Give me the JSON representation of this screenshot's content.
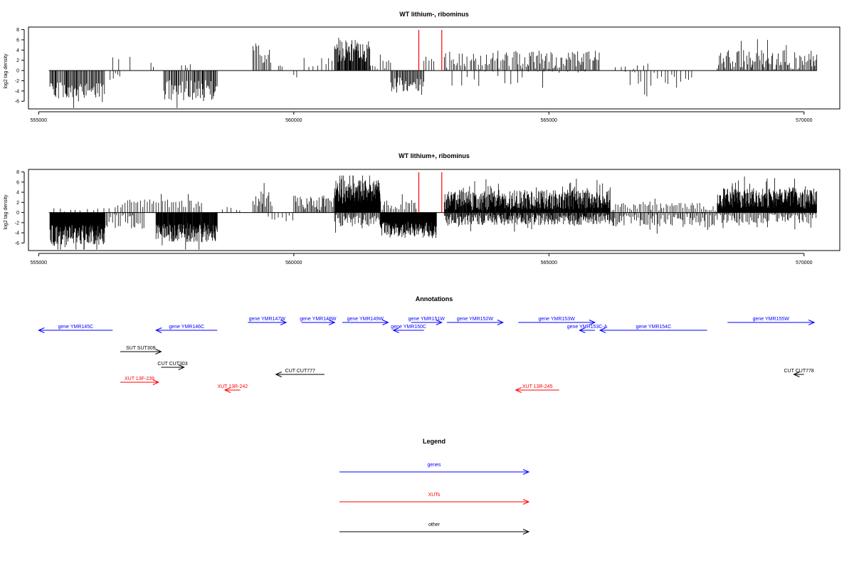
{
  "colors": {
    "gene": "#0000ff",
    "xut": "#ff0000",
    "other": "#000000",
    "marker": "#ff0000",
    "bars": "#000000"
  },
  "chart_data": [
    {
      "type": "bar",
      "title": "WT lithium-, ribominus",
      "ylabel": "log2 tag density",
      "xlim": [
        554800,
        570700
      ],
      "ylim": [
        -7.5,
        8.5
      ],
      "xticks": [
        555000,
        560000,
        565000,
        570000
      ],
      "xtick_labels": [
        "555000",
        "560000",
        "565000",
        "570000"
      ],
      "yticks": [
        -6,
        -4,
        -2,
        0,
        2,
        4,
        6,
        8
      ],
      "ytick_labels": [
        "-6",
        "-4",
        "-2",
        "0",
        "2",
        "4",
        "6",
        "8"
      ],
      "baseline_range": [
        555200,
        570250
      ],
      "red_markers_x": [
        562450,
        562900
      ],
      "regions": [
        {
          "from": 555220,
          "to": 556300,
          "sign": -1,
          "amp": 4.2,
          "var": 2.0,
          "step": 18
        },
        {
          "from": 556400,
          "to": 556600,
          "sign": -1,
          "amp": 1.5,
          "var": 1.0,
          "step": 45
        },
        {
          "from": 556450,
          "to": 556950,
          "sign": 1,
          "amp": 2.4,
          "var": 0.6,
          "step": 160
        },
        {
          "from": 557200,
          "to": 557300,
          "sign": 1,
          "amp": 1.2,
          "var": 0.5,
          "step": 80
        },
        {
          "from": 557450,
          "to": 558500,
          "sign": -1,
          "amp": 3.9,
          "var": 2.1,
          "step": 18
        },
        {
          "from": 557800,
          "to": 558000,
          "sign": 1,
          "amp": 0.8,
          "var": 0.4,
          "step": 60
        },
        {
          "from": 559200,
          "to": 559550,
          "sign": 1,
          "amp": 3.5,
          "var": 2.0,
          "step": 25
        },
        {
          "from": 559700,
          "to": 559800,
          "sign": 1,
          "amp": 1.0,
          "var": 0.5,
          "step": 50
        },
        {
          "from": 560000,
          "to": 560100,
          "sign": -1,
          "amp": 1.4,
          "var": 0.6,
          "step": 50
        },
        {
          "from": 560200,
          "to": 560800,
          "sign": 1,
          "amp": 1.6,
          "var": 1.6,
          "step": 70
        },
        {
          "from": 560800,
          "to": 561500,
          "sign": 1,
          "amp": 3.8,
          "var": 2.2,
          "step": 12
        },
        {
          "from": 561500,
          "to": 561900,
          "sign": 1,
          "amp": 1.2,
          "var": 1.0,
          "step": 45
        },
        {
          "from": 561900,
          "to": 562550,
          "sign": -1,
          "amp": 2.8,
          "var": 1.5,
          "step": 18
        },
        {
          "from": 562550,
          "to": 562800,
          "sign": 1,
          "amp": 1.8,
          "var": 1.2,
          "step": 45
        },
        {
          "from": 562950,
          "to": 564600,
          "sign": 1,
          "amp": 1.9,
          "var": 1.9,
          "step": 28
        },
        {
          "from": 563100,
          "to": 564900,
          "sign": -1,
          "amp": 1.0,
          "var": 2.0,
          "step": 140
        },
        {
          "from": 564600,
          "to": 566000,
          "sign": 1,
          "amp": 2.0,
          "var": 1.9,
          "step": 24
        },
        {
          "from": 564900,
          "to": 565800,
          "sign": -1,
          "amp": 1.0,
          "var": 1.5,
          "step": 150
        },
        {
          "from": 566500,
          "to": 567800,
          "sign": -1,
          "amp": 1.6,
          "var": 1.6,
          "step": 70
        },
        {
          "from": 566300,
          "to": 567000,
          "sign": 1,
          "amp": 0.6,
          "var": 0.4,
          "step": 120
        },
        {
          "from": 568300,
          "to": 570250,
          "sign": 1,
          "amp": 2.1,
          "var": 1.9,
          "step": 22
        }
      ]
    },
    {
      "type": "bar",
      "title": "WT lithium+, ribominus",
      "ylabel": "log2 tag density",
      "xlim": [
        554800,
        570700
      ],
      "ylim": [
        -7.5,
        8.5
      ],
      "xticks": [
        555000,
        560000,
        565000,
        570000
      ],
      "xtick_labels": [
        "555000",
        "560000",
        "565000",
        "570000"
      ],
      "yticks": [
        -6,
        -4,
        -2,
        0,
        2,
        4,
        6,
        8
      ],
      "ytick_labels": [
        "-6",
        "-4",
        "-2",
        "0",
        "2",
        "4",
        "6",
        "8"
      ],
      "baseline_range": [
        555200,
        570250
      ],
      "red_markers_x": [
        562450,
        562900
      ],
      "regions": [
        {
          "from": 555220,
          "to": 556300,
          "sign": -1,
          "amp": 4.4,
          "var": 2.0,
          "step": 8
        },
        {
          "from": 555300,
          "to": 556400,
          "sign": 1,
          "amp": 0.5,
          "var": 0.4,
          "step": 120
        },
        {
          "from": 556300,
          "to": 557100,
          "sign": -1,
          "amp": 1.8,
          "var": 1.6,
          "step": 30
        },
        {
          "from": 556500,
          "to": 557300,
          "sign": 1,
          "amp": 1.8,
          "var": 0.9,
          "step": 45
        },
        {
          "from": 557300,
          "to": 558500,
          "sign": -1,
          "amp": 4.0,
          "var": 2.0,
          "step": 9
        },
        {
          "from": 557300,
          "to": 558200,
          "sign": 1,
          "amp": 1.8,
          "var": 0.9,
          "step": 40
        },
        {
          "from": 558600,
          "to": 559000,
          "sign": 1,
          "amp": 0.6,
          "var": 0.5,
          "step": 90
        },
        {
          "from": 559200,
          "to": 559600,
          "sign": 1,
          "amp": 2.6,
          "var": 1.6,
          "step": 25
        },
        {
          "from": 559500,
          "to": 560000,
          "sign": -1,
          "amp": 0.9,
          "var": 0.7,
          "step": 60
        },
        {
          "from": 560000,
          "to": 560800,
          "sign": 1,
          "amp": 1.9,
          "var": 1.5,
          "step": 22
        },
        {
          "from": 560800,
          "to": 561700,
          "sign": 1,
          "amp": 4.0,
          "var": 2.4,
          "step": 6
        },
        {
          "from": 560800,
          "to": 561700,
          "sign": -1,
          "amp": 1.6,
          "var": 1.2,
          "step": 20
        },
        {
          "from": 561700,
          "to": 562800,
          "sign": -1,
          "amp": 3.4,
          "var": 1.6,
          "step": 8
        },
        {
          "from": 561700,
          "to": 562400,
          "sign": 1,
          "amp": 1.5,
          "var": 1.0,
          "step": 30
        },
        {
          "from": 562950,
          "to": 566200,
          "sign": 1,
          "amp": 2.5,
          "var": 2.0,
          "step": 9
        },
        {
          "from": 562950,
          "to": 566200,
          "sign": -1,
          "amp": 1.4,
          "var": 1.1,
          "step": 14
        },
        {
          "from": 566200,
          "to": 568300,
          "sign": -1,
          "amp": 1.6,
          "var": 1.4,
          "step": 25
        },
        {
          "from": 566200,
          "to": 568300,
          "sign": 1,
          "amp": 1.1,
          "var": 0.8,
          "step": 35
        },
        {
          "from": 568300,
          "to": 570250,
          "sign": 1,
          "amp": 2.8,
          "var": 2.0,
          "step": 7
        },
        {
          "from": 568300,
          "to": 570250,
          "sign": -1,
          "amp": 1.2,
          "var": 1.0,
          "step": 25
        }
      ]
    }
  ],
  "annotations": {
    "title": "Annotations",
    "rows": [
      {
        "label": "gene YMR145C",
        "start": 556450,
        "end": 555000,
        "row": 1,
        "cls": "gene"
      },
      {
        "label": "gene YMR146C",
        "start": 558500,
        "end": 557300,
        "row": 1,
        "cls": "gene"
      },
      {
        "label": "gene YMR147W",
        "start": 559100,
        "end": 559850,
        "row": 0,
        "cls": "gene"
      },
      {
        "label": "gene YMR148W",
        "start": 560150,
        "end": 560800,
        "row": 0,
        "cls": "gene"
      },
      {
        "label": "gene YMR149W",
        "start": 560950,
        "end": 561850,
        "row": 0,
        "cls": "gene"
      },
      {
        "label": "gene YMR150C",
        "start": 562550,
        "end": 561950,
        "row": 1,
        "cls": "gene"
      },
      {
        "label": "gene YMR151W",
        "start": 562300,
        "end": 562900,
        "row": 0,
        "cls": "gene"
      },
      {
        "label": "gene YMR152W",
        "start": 563000,
        "end": 564100,
        "row": 0,
        "cls": "gene"
      },
      {
        "label": "gene YMR153W",
        "start": 564400,
        "end": 565900,
        "row": 0,
        "cls": "gene"
      },
      {
        "label": "gene YMR153C-A",
        "start": 565900,
        "end": 565600,
        "row": 1,
        "cls": "gene"
      },
      {
        "label": "gene YMR154C",
        "start": 568100,
        "end": 566000,
        "row": 1,
        "cls": "gene"
      },
      {
        "label": "gene YMR155W",
        "start": 568500,
        "end": 570200,
        "row": 0,
        "cls": "gene"
      },
      {
        "label": "SUT SUT309",
        "start": 556600,
        "end": 557400,
        "row": 2,
        "cls": "other"
      },
      {
        "label": "CUT CUT303",
        "start": 557400,
        "end": 557850,
        "row": 3,
        "cls": "other"
      },
      {
        "label": "CUT CUT777",
        "start": 560600,
        "end": 559650,
        "row": 4,
        "cls": "other"
      },
      {
        "label": "CUT CUT778",
        "start": 570000,
        "end": 569800,
        "row": 4,
        "cls": "other"
      },
      {
        "label": "XUT 13F-239",
        "start": 556600,
        "end": 557350,
        "row": 5,
        "cls": "xut"
      },
      {
        "label": "XUT 13R-242",
        "start": 558950,
        "end": 558650,
        "row": 6,
        "cls": "xut"
      },
      {
        "label": "XUT 13R-245",
        "start": 565200,
        "end": 564350,
        "row": 6,
        "cls": "xut"
      }
    ]
  },
  "legend": {
    "title": "Legend",
    "items": [
      {
        "label": "genes",
        "cls": "gene"
      },
      {
        "label": "XUTs",
        "cls": "xut"
      },
      {
        "label": "other",
        "cls": "other"
      }
    ]
  }
}
